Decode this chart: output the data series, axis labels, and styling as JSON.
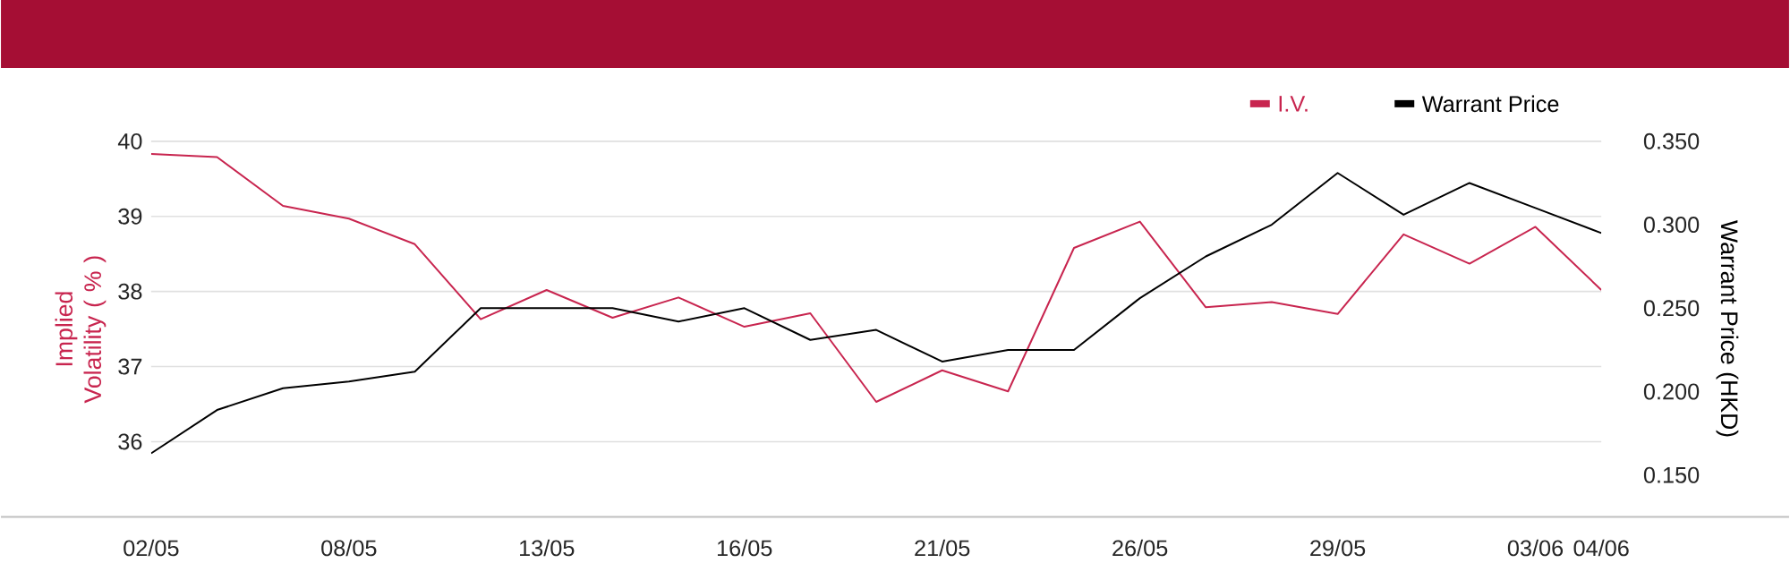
{
  "chart_data": {
    "type": "line",
    "categories": [
      "02/05",
      null,
      null,
      "08/05",
      null,
      null,
      "13/05",
      null,
      null,
      "16/05",
      null,
      null,
      "21/05",
      null,
      null,
      "26/05",
      null,
      null,
      "29/05",
      null,
      null,
      "03/06",
      "04/06"
    ],
    "series": [
      {
        "name": "I.V.",
        "color": "#c8254f",
        "values": [
          39.83,
          39.79,
          39.14,
          38.97,
          38.63,
          37.63,
          38.02,
          37.65,
          37.92,
          37.53,
          37.71,
          36.53,
          36.95,
          36.67,
          38.58,
          38.93,
          37.79,
          37.86,
          37.7,
          38.76,
          38.37,
          38.86,
          38.02
        ]
      },
      {
        "name": "Warrant Price",
        "color": "#000000",
        "axis": "y2",
        "values": [
          0.163,
          0.189,
          0.202,
          0.206,
          0.212,
          0.25,
          0.25,
          0.25,
          0.242,
          0.25,
          0.231,
          0.237,
          0.218,
          0.225,
          0.225,
          0.256,
          0.281,
          0.3,
          0.331,
          0.306,
          0.325,
          0.31,
          0.295
        ]
      }
    ],
    "ylim": [
      35,
      40
    ],
    "yticks": [
      36,
      37,
      38,
      39,
      40
    ],
    "y2lim": [
      0.125,
      0.35
    ],
    "y2ticks": [
      {
        "value": 0.15,
        "label": "0.150"
      },
      {
        "value": 0.2,
        "label": "0.200"
      },
      {
        "value": 0.25,
        "label": "0.250"
      },
      {
        "value": 0.3,
        "label": "0.300"
      },
      {
        "value": 0.35,
        "label": "0.350"
      }
    ],
    "ylabel": "Implied Volatility ( % )",
    "y2label": "Warrant Price (HKD)",
    "grid": "y",
    "legend": "top right"
  }
}
